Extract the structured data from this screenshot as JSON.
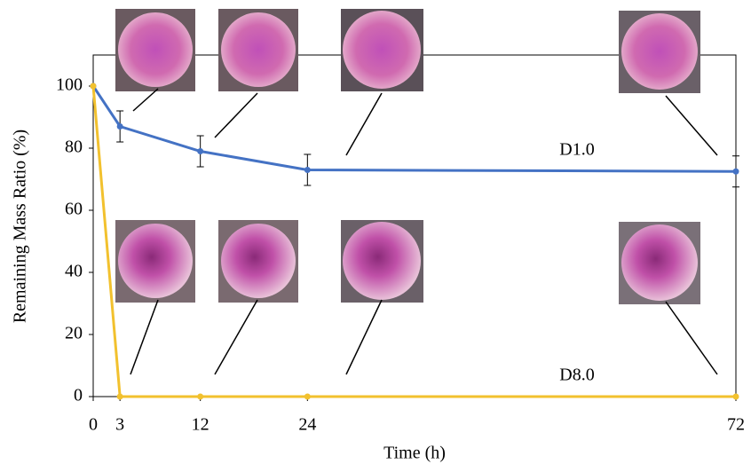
{
  "chart_data": {
    "type": "line",
    "xlabel": "Time (h)",
    "ylabel": "Remaining Mass Ratio (%)",
    "x": [
      0,
      3,
      12,
      24,
      72
    ],
    "series": [
      {
        "name": "D1.0",
        "color": "#4472c4",
        "values": [
          100,
          87,
          79,
          73,
          72.5
        ],
        "errors": [
          null,
          5,
          5,
          5,
          5
        ]
      },
      {
        "name": "D8.0",
        "color": "#f2c12e",
        "values": [
          100,
          0,
          0,
          0,
          0
        ]
      }
    ],
    "xlim": [
      0,
      72
    ],
    "xticks": [
      0,
      3,
      12,
      24,
      72
    ],
    "ylim": [
      0,
      110
    ],
    "yticks": [
      0,
      20,
      40,
      60,
      80,
      100
    ],
    "grid": false
  }
}
